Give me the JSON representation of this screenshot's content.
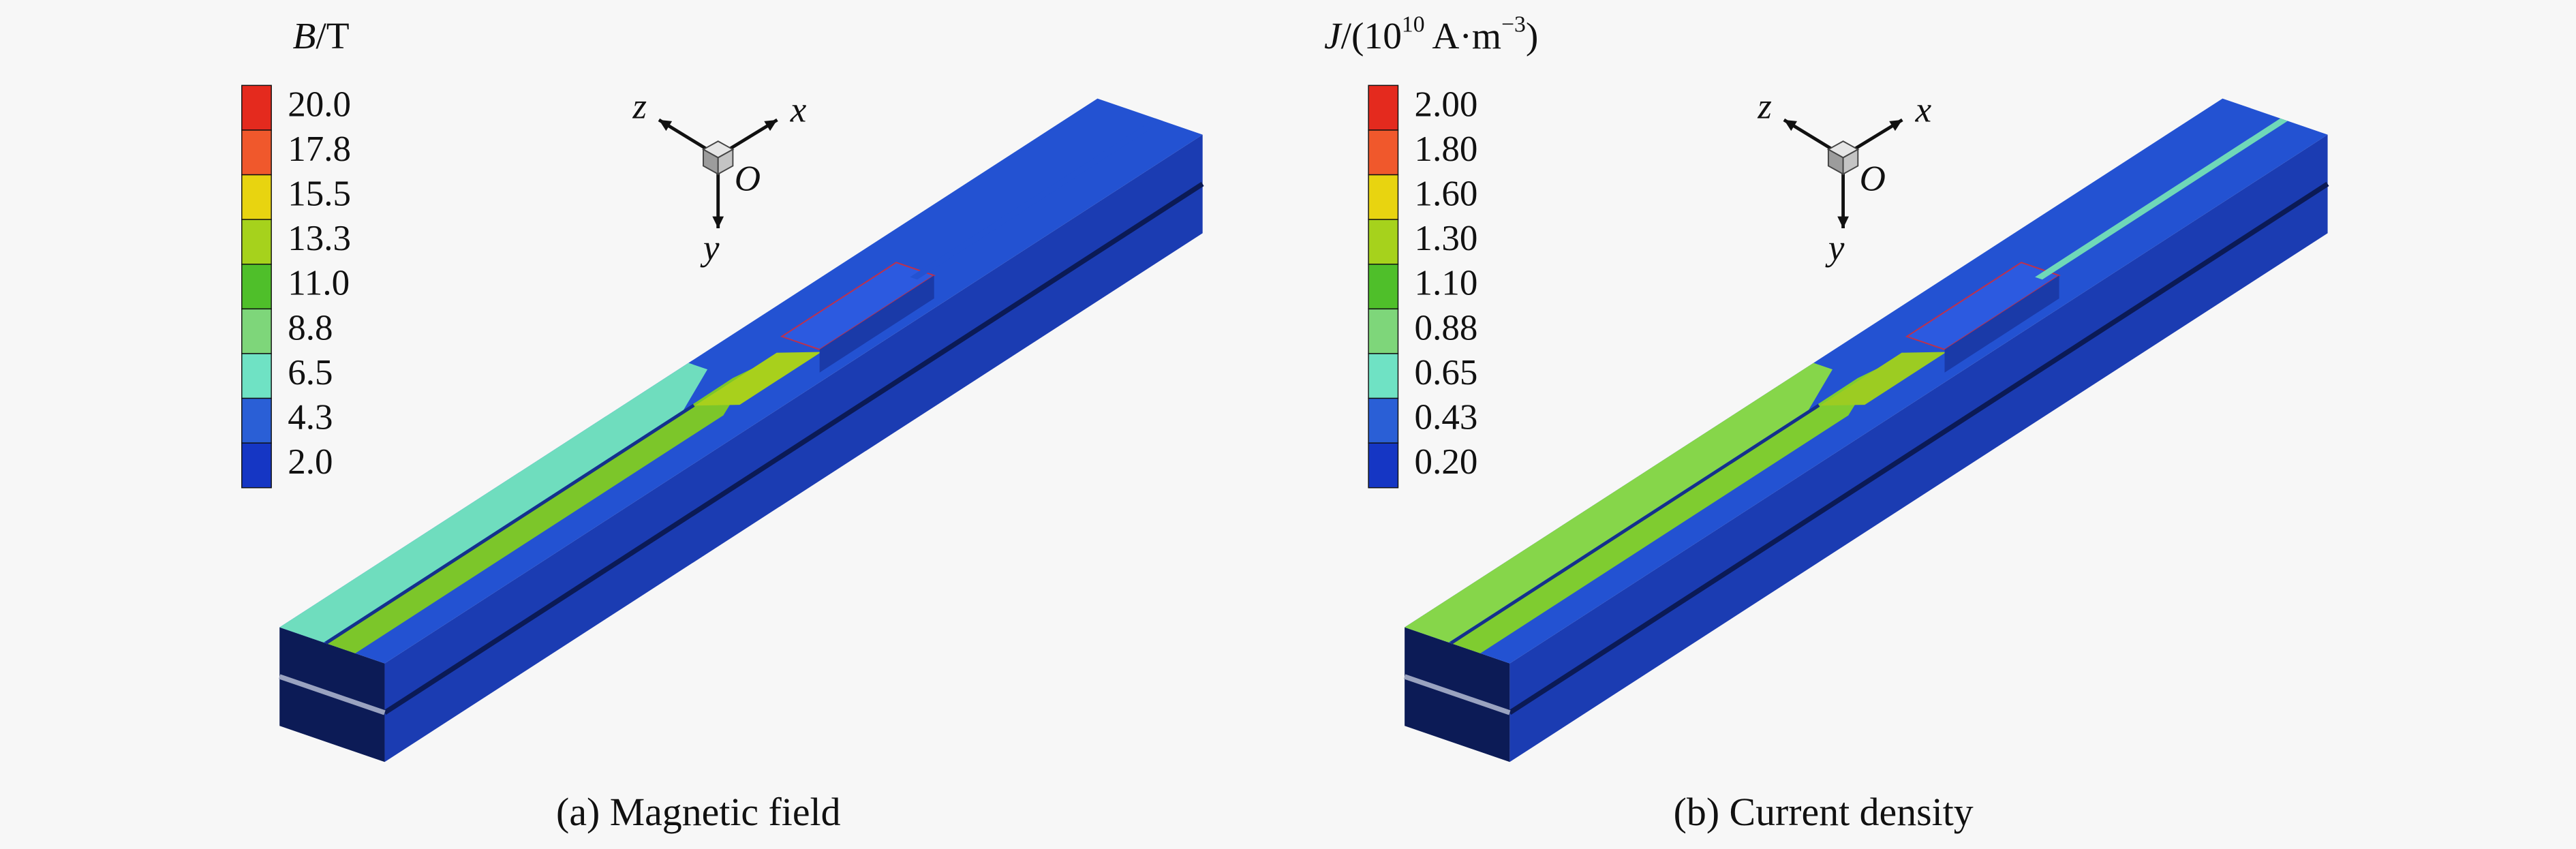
{
  "panels": [
    {
      "legend_title": {
        "symbol": "B",
        "parts": [
          "/T"
        ]
      },
      "legend_labels": [
        "20.0",
        "17.8",
        "15.5",
        "13.3",
        "11.0",
        "8.8",
        "6.5",
        "4.3",
        "2.0"
      ],
      "axes": {
        "z": "z",
        "x": "x",
        "origin": "O",
        "y": "y"
      },
      "caption": "(a) Magnetic field"
    },
    {
      "legend_title": {
        "symbol": "J",
        "parts": [
          "/(10",
          "10",
          " A·m",
          "−3",
          ")"
        ]
      },
      "legend_labels": [
        "2.00",
        "1.80",
        "1.60",
        "1.30",
        "1.10",
        "0.88",
        "0.65",
        "0.43",
        "0.20"
      ],
      "axes": {
        "z": "z",
        "x": "x",
        "origin": "O",
        "y": "y"
      },
      "caption": "(b) Current density"
    }
  ]
}
